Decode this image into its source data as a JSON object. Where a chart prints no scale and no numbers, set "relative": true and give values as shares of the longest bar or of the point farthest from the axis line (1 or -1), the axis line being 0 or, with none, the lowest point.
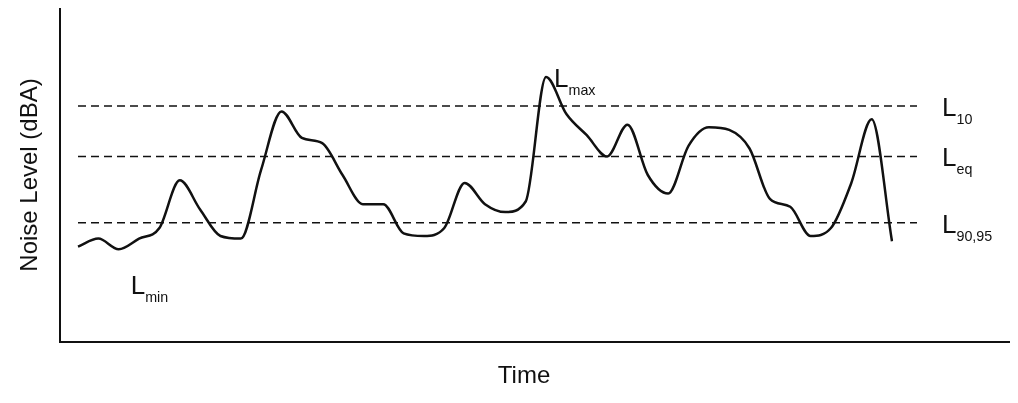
{
  "chart_data": {
    "type": "line",
    "xlabel": "Time",
    "ylabel": "Noise Level (dBA)",
    "relative": true,
    "legend": false,
    "marker": "none",
    "line_style": "solid",
    "categories": [
      null,
      null,
      null,
      null,
      null,
      null,
      null,
      null,
      null,
      null,
      null,
      null,
      null,
      null,
      null,
      null,
      null,
      null,
      null,
      null,
      null,
      null,
      null,
      null,
      null,
      null,
      null,
      null,
      null,
      null,
      null,
      null,
      null,
      null,
      null,
      null,
      null,
      null,
      null,
      null,
      null
    ],
    "series": [
      {
        "color": "#111111",
        "values": [
          0.36,
          0.39,
          0.35,
          0.39,
          0.43,
          0.61,
          0.5,
          0.4,
          0.39,
          0.65,
          0.87,
          0.77,
          0.75,
          0.63,
          0.52,
          0.52,
          0.41,
          0.4,
          0.43,
          0.6,
          0.52,
          0.49,
          0.53,
          1,
          0.86,
          0.78,
          0.7,
          0.82,
          0.63,
          0.56,
          0.74,
          0.81,
          0.8,
          0.73,
          0.54,
          0.51,
          0.4,
          0.43,
          0.6,
          0.84,
          0.38
        ]
      }
    ],
    "ref_lines": [
      {
        "axis": "y",
        "value": 0.89,
        "label": "L$_{10}$",
        "line_style": "dashed",
        "color": "#111111"
      },
      {
        "axis": "y",
        "value": 0.7,
        "label": "L$_{eq}$",
        "line_style": "dashed",
        "color": "#111111"
      },
      {
        "axis": "y",
        "value": 0.45,
        "label": "L$_{90,95}$",
        "line_style": "dashed",
        "color": "#111111"
      }
    ],
    "annotations": [
      "L$_{max}$",
      "L$_{min}$"
    ]
  }
}
